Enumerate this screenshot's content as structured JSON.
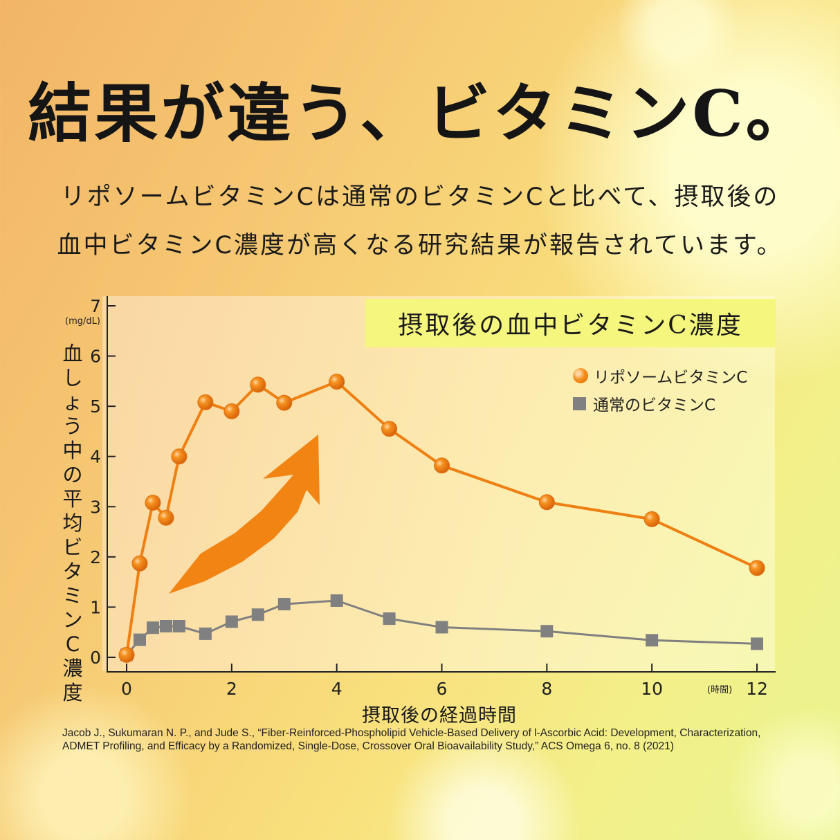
{
  "headline": "結果が違う、ビタミンC。",
  "subtitle_lines": [
    "リポソームビタミンCは通常のビタミンCと比べて、摂取後の",
    "血中ビタミンC濃度が高くなる研究結果が報告されています。"
  ],
  "citation": "Jacob J., Sukumaran N. P., and Jude S., “Fiber‐Reinforced‐Phospholipid Vehicle‐Based Delivery of l‐Ascorbic Acid: Development, Characterization, ADMET Profiling, and Efficacy by a Randomized, Single‐Dose, Crossover Oral Bioavailability Study,” ACS Omega 6, no. 8 (2021)",
  "chart_data": {
    "type": "line",
    "title": "摂取後の血中ビタミンC濃度",
    "xlabel": "摂取後の経過時間",
    "x_unit": "(時間)",
    "ylabel": "血しょう中の平均ビタミンC濃度",
    "y_unit": "(mg/dL)",
    "xlim": [
      0,
      12
    ],
    "ylim": [
      0,
      7
    ],
    "xticks": [
      0,
      2,
      4,
      6,
      8,
      10,
      12
    ],
    "yticks": [
      0,
      1,
      2,
      3,
      4,
      5,
      6,
      7
    ],
    "grid": false,
    "legend_position": "top-right",
    "series": [
      {
        "name": "リポソームビタミンC",
        "color": "#ee7f12",
        "marker": "circle",
        "points": [
          [
            0,
            0.05
          ],
          [
            0.25,
            1.87
          ],
          [
            0.5,
            3.08
          ],
          [
            0.75,
            2.78
          ],
          [
            1,
            4.0
          ],
          [
            1.5,
            5.08
          ],
          [
            2,
            4.9
          ],
          [
            2.5,
            5.43
          ],
          [
            3,
            5.07
          ],
          [
            4,
            5.49
          ],
          [
            5,
            4.55
          ],
          [
            6,
            3.82
          ],
          [
            8,
            3.09
          ],
          [
            10,
            2.75
          ],
          [
            12,
            1.78
          ]
        ]
      },
      {
        "name": "通常のビタミンC",
        "color": "#808080",
        "marker": "square",
        "points": [
          [
            0,
            0.05
          ],
          [
            0.25,
            0.35
          ],
          [
            0.5,
            0.59
          ],
          [
            0.75,
            0.62
          ],
          [
            1,
            0.62
          ],
          [
            1.5,
            0.47
          ],
          [
            2,
            0.71
          ],
          [
            2.5,
            0.85
          ],
          [
            3,
            1.06
          ],
          [
            4,
            1.13
          ],
          [
            5,
            0.77
          ],
          [
            6,
            0.6
          ],
          [
            8,
            0.52
          ],
          [
            10,
            0.34
          ],
          [
            12,
            0.27
          ]
        ]
      }
    ]
  }
}
